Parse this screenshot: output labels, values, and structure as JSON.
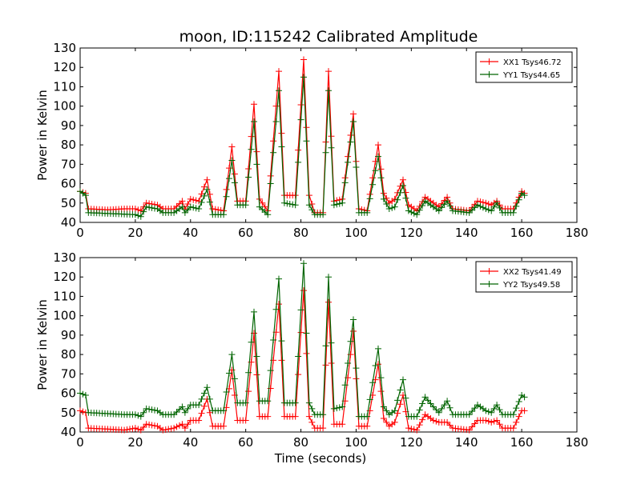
{
  "figure_title": "moon, ID:115242 Calibrated Amplitude",
  "colors": {
    "red": "#ff0000",
    "green": "#006400"
  },
  "chart_data": [
    {
      "type": "line",
      "ylabel": "Power in Kelvin",
      "xlabel": "",
      "xlim": [
        0,
        180
      ],
      "ylim": [
        40,
        130
      ],
      "xticks": [
        0,
        20,
        40,
        60,
        80,
        100,
        120,
        140,
        160,
        180
      ],
      "yticks": [
        40,
        50,
        60,
        70,
        80,
        90,
        100,
        110,
        120,
        130
      ],
      "legend_position": "top-right",
      "series": [
        {
          "name": "XX1 Tsys46.72",
          "color": "#ff0000",
          "points": [
            [
              0,
              56
            ],
            [
              2,
              55
            ],
            [
              3,
              47
            ],
            [
              10,
              46.5
            ],
            [
              16,
              47
            ],
            [
              20,
              47
            ],
            [
              22,
              46
            ],
            [
              24,
              50
            ],
            [
              28,
              49
            ],
            [
              30,
              47
            ],
            [
              34,
              47
            ],
            [
              37,
              51
            ],
            [
              38,
              47
            ],
            [
              40,
              52
            ],
            [
              43,
              51
            ],
            [
              46,
              62
            ],
            [
              48,
              47
            ],
            [
              52,
              46
            ],
            [
              55,
              79
            ],
            [
              57,
              51
            ],
            [
              60,
              51
            ],
            [
              63,
              101
            ],
            [
              65,
              52
            ],
            [
              68,
              46
            ],
            [
              72,
              118
            ],
            [
              74,
              54
            ],
            [
              78,
              54
            ],
            [
              81,
              124
            ],
            [
              83,
              54
            ],
            [
              85,
              45
            ],
            [
              88,
              45
            ],
            [
              90,
              118
            ],
            [
              92,
              51
            ],
            [
              95,
              52
            ],
            [
              99,
              96
            ],
            [
              101,
              47
            ],
            [
              104,
              46
            ],
            [
              108,
              80
            ],
            [
              110,
              55
            ],
            [
              112,
              50
            ],
            [
              114,
              52
            ],
            [
              117,
              62
            ],
            [
              119,
              49
            ],
            [
              122,
              46
            ],
            [
              125,
              53
            ],
            [
              128,
              50
            ],
            [
              130,
              48
            ],
            [
              133,
              53
            ],
            [
              135,
              47
            ],
            [
              141,
              46
            ],
            [
              144,
              51
            ],
            [
              147,
              50
            ],
            [
              149,
              49
            ],
            [
              151,
              51
            ],
            [
              153,
              47
            ],
            [
              157,
              47
            ],
            [
              160,
              56
            ],
            [
              161,
              55
            ]
          ]
        },
        {
          "name": "YY1 Tsys44.65",
          "color": "#006400",
          "points": [
            [
              0,
              56
            ],
            [
              2,
              54
            ],
            [
              3,
              45
            ],
            [
              12,
              44.5
            ],
            [
              20,
              44
            ],
            [
              22,
              43
            ],
            [
              24,
              48
            ],
            [
              28,
              47
            ],
            [
              30,
              45
            ],
            [
              34,
              45
            ],
            [
              37,
              48
            ],
            [
              38,
              45
            ],
            [
              40,
              48
            ],
            [
              43,
              47
            ],
            [
              46,
              57
            ],
            [
              48,
              44
            ],
            [
              52,
              44
            ],
            [
              55,
              72
            ],
            [
              57,
              49
            ],
            [
              60,
              49
            ],
            [
              63,
              92
            ],
            [
              65,
              48
            ],
            [
              68,
              44
            ],
            [
              72,
              108
            ],
            [
              74,
              50
            ],
            [
              78,
              49
            ],
            [
              81,
              115
            ],
            [
              83,
              49
            ],
            [
              85,
              44
            ],
            [
              88,
              44
            ],
            [
              90,
              108
            ],
            [
              92,
              49
            ],
            [
              95,
              50
            ],
            [
              99,
              92
            ],
            [
              101,
              45
            ],
            [
              104,
              45
            ],
            [
              108,
              74
            ],
            [
              110,
              52
            ],
            [
              112,
              47
            ],
            [
              114,
              48
            ],
            [
              117,
              59
            ],
            [
              119,
              46
            ],
            [
              122,
              44
            ],
            [
              125,
              51
            ],
            [
              128,
              48
            ],
            [
              130,
              46
            ],
            [
              133,
              51
            ],
            [
              135,
              46
            ],
            [
              141,
              45
            ],
            [
              144,
              49
            ],
            [
              147,
              47
            ],
            [
              149,
              46
            ],
            [
              151,
              50
            ],
            [
              153,
              45
            ],
            [
              157,
              45
            ],
            [
              160,
              55
            ],
            [
              161,
              54
            ]
          ]
        }
      ]
    },
    {
      "type": "line",
      "ylabel": "Power in Kelvin",
      "xlabel": "Time (seconds)",
      "xlim": [
        0,
        180
      ],
      "ylim": [
        40,
        130
      ],
      "xticks": [
        0,
        20,
        40,
        60,
        80,
        100,
        120,
        140,
        160,
        180
      ],
      "yticks": [
        40,
        50,
        60,
        70,
        80,
        90,
        100,
        110,
        120,
        130
      ],
      "legend_position": "top-right",
      "series": [
        {
          "name": "XX2 Tsys41.49",
          "color": "#ff0000",
          "points": [
            [
              0,
              51
            ],
            [
              2,
              50
            ],
            [
              3,
              42
            ],
            [
              10,
              41.5
            ],
            [
              16,
              41
            ],
            [
              20,
              42
            ],
            [
              22,
              41
            ],
            [
              24,
              44
            ],
            [
              28,
              43
            ],
            [
              30,
              41
            ],
            [
              34,
              42
            ],
            [
              37,
              44
            ],
            [
              38,
              42
            ],
            [
              40,
              46
            ],
            [
              43,
              46
            ],
            [
              46,
              57
            ],
            [
              48,
              43
            ],
            [
              52,
              43
            ],
            [
              55,
              72
            ],
            [
              57,
              46
            ],
            [
              60,
              46
            ],
            [
              63,
              91
            ],
            [
              65,
              48
            ],
            [
              68,
              48
            ],
            [
              72,
              106
            ],
            [
              74,
              48
            ],
            [
              78,
              48
            ],
            [
              81,
              113
            ],
            [
              83,
              48
            ],
            [
              85,
              42
            ],
            [
              88,
              42
            ],
            [
              90,
              107
            ],
            [
              92,
              44
            ],
            [
              95,
              44
            ],
            [
              99,
              92
            ],
            [
              101,
              43
            ],
            [
              104,
              43
            ],
            [
              108,
              75
            ],
            [
              110,
              47
            ],
            [
              112,
              43
            ],
            [
              114,
              45
            ],
            [
              117,
              59
            ],
            [
              119,
              42
            ],
            [
              122,
              41
            ],
            [
              125,
              49
            ],
            [
              128,
              46
            ],
            [
              130,
              45
            ],
            [
              133,
              45
            ],
            [
              135,
              42
            ],
            [
              141,
              41
            ],
            [
              144,
              46
            ],
            [
              147,
              46
            ],
            [
              149,
              45
            ],
            [
              151,
              46
            ],
            [
              153,
              42
            ],
            [
              157,
              42
            ],
            [
              160,
              51
            ],
            [
              161,
              51
            ]
          ]
        },
        {
          "name": "YY2 Tsys49.58",
          "color": "#006400",
          "points": [
            [
              0,
              60
            ],
            [
              2,
              59
            ],
            [
              3,
              50
            ],
            [
              10,
              49.5
            ],
            [
              16,
              49
            ],
            [
              20,
              49
            ],
            [
              22,
              48
            ],
            [
              24,
              52
            ],
            [
              28,
              51
            ],
            [
              30,
              49
            ],
            [
              34,
              49
            ],
            [
              37,
              53
            ],
            [
              38,
              50
            ],
            [
              40,
              54
            ],
            [
              43,
              54
            ],
            [
              46,
              63
            ],
            [
              48,
              51
            ],
            [
              52,
              51
            ],
            [
              55,
              80
            ],
            [
              57,
              55
            ],
            [
              60,
              55
            ],
            [
              63,
              102
            ],
            [
              65,
              56
            ],
            [
              68,
              56
            ],
            [
              72,
              119
            ],
            [
              74,
              55
            ],
            [
              78,
              55
            ],
            [
              81,
              127
            ],
            [
              83,
              55
            ],
            [
              85,
              49
            ],
            [
              88,
              49
            ],
            [
              90,
              120
            ],
            [
              92,
              52
            ],
            [
              95,
              53
            ],
            [
              99,
              98
            ],
            [
              101,
              48
            ],
            [
              104,
              48
            ],
            [
              108,
              83
            ],
            [
              110,
              53
            ],
            [
              112,
              49
            ],
            [
              114,
              51
            ],
            [
              117,
              67
            ],
            [
              119,
              48
            ],
            [
              122,
              48
            ],
            [
              125,
              58
            ],
            [
              128,
              53
            ],
            [
              130,
              50
            ],
            [
              133,
              56
            ],
            [
              135,
              49
            ],
            [
              141,
              49
            ],
            [
              144,
              54
            ],
            [
              147,
              51
            ],
            [
              149,
              50
            ],
            [
              151,
              54
            ],
            [
              153,
              49
            ],
            [
              157,
              49
            ],
            [
              160,
              59
            ],
            [
              161,
              58
            ]
          ]
        }
      ]
    }
  ]
}
